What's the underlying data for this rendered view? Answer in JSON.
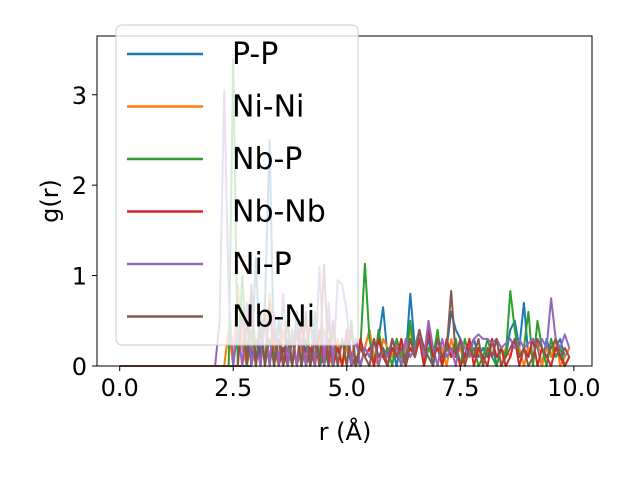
{
  "chart_data": {
    "type": "line",
    "title": "",
    "xlabel": "r (Å)",
    "ylabel": "g(r)",
    "xlim": [
      -0.5,
      10.4
    ],
    "ylim": [
      0,
      3.65
    ],
    "xticks": [
      {
        "value": 0.0,
        "label": "0.0"
      },
      {
        "value": 2.5,
        "label": "2.5"
      },
      {
        "value": 5.0,
        "label": "5.0"
      },
      {
        "value": 7.5,
        "label": "7.5"
      },
      {
        "value": 10.0,
        "label": "10.0"
      }
    ],
    "yticks": [
      {
        "value": 0,
        "label": "0"
      },
      {
        "value": 1,
        "label": "1"
      },
      {
        "value": 2,
        "label": "2"
      },
      {
        "value": 3,
        "label": "3"
      }
    ],
    "grid": false,
    "legend_position": "upper-left",
    "series": [
      {
        "name": "P-P",
        "color": "#1f77b4",
        "x": [
          0.0,
          2.9,
          3.0,
          3.1,
          3.2,
          3.3,
          3.4,
          3.5,
          3.6,
          3.7,
          3.8,
          3.9,
          4.0,
          4.1,
          4.2,
          4.3,
          4.4,
          4.5,
          4.6,
          4.7,
          4.8,
          4.9,
          5.0,
          5.1,
          5.2,
          5.3,
          5.4,
          5.5,
          5.6,
          5.7,
          5.8,
          5.9,
          6.0,
          6.1,
          6.2,
          6.3,
          6.4,
          6.5,
          6.6,
          6.7,
          6.8,
          6.9,
          7.0,
          7.1,
          7.2,
          7.3,
          7.4,
          7.5,
          7.6,
          7.7,
          7.8,
          7.9,
          8.0,
          8.1,
          8.2,
          8.3,
          8.4,
          8.5,
          8.6,
          8.7,
          8.8,
          8.9,
          9.0,
          9.1,
          9.2,
          9.3,
          9.4,
          9.5,
          9.6,
          9.7,
          9.8,
          9.9
        ],
        "y": [
          0,
          0,
          1.2,
          0.0,
          0.7,
          2.5,
          0.0,
          0.5,
          0.0,
          0.3,
          0.0,
          0.6,
          0.0,
          0.2,
          0.0,
          0.4,
          0.0,
          0.1,
          0.5,
          0.0,
          0.2,
          0.0,
          0.3,
          0.0,
          0.1,
          0.0,
          0.2,
          0.4,
          0.0,
          0.3,
          0.65,
          0.1,
          0.2,
          0.0,
          0.3,
          0.1,
          0.8,
          0.2,
          0.4,
          0.1,
          0.3,
          0.0,
          0.3,
          0.1,
          0.2,
          0.6,
          0.4,
          0.3,
          0.1,
          0.2,
          0.3,
          0.1,
          0.2,
          0.1,
          0.3,
          0.0,
          0.2,
          0.1,
          0.4,
          0.5,
          0.2,
          0.7,
          0.1,
          0.3,
          0.2,
          0.0,
          0.3,
          0.1,
          0.2,
          0.3,
          0.1,
          0.2
        ]
      },
      {
        "name": "Ni-Ni",
        "color": "#ff7f0e",
        "x": [
          0.0,
          2.3,
          2.4,
          2.5,
          2.6,
          2.7,
          2.8,
          2.9,
          3.0,
          3.1,
          3.2,
          3.3,
          3.4,
          3.5,
          3.6,
          3.7,
          3.8,
          3.9,
          4.0,
          4.1,
          4.2,
          4.3,
          4.4,
          4.5,
          4.6,
          4.7,
          4.8,
          4.9,
          5.0,
          5.1,
          5.2,
          5.3,
          5.4,
          5.5,
          5.6,
          5.7,
          5.8,
          5.9,
          6.0,
          6.1,
          6.2,
          6.3,
          6.4,
          6.5,
          6.6,
          6.7,
          6.8,
          6.9,
          7.0,
          7.1,
          7.2,
          7.3,
          7.4,
          7.5,
          7.6,
          7.7,
          7.8,
          7.9,
          8.0,
          8.1,
          8.2,
          8.3,
          8.4,
          8.5,
          8.6,
          8.7,
          8.8,
          8.9,
          9.0,
          9.1,
          9.2,
          9.3,
          9.4,
          9.5,
          9.6,
          9.7,
          9.8,
          9.9
        ],
        "y": [
          0,
          0,
          0.4,
          0.0,
          0.9,
          0.2,
          0.0,
          0.3,
          0.0,
          0.5,
          0.0,
          0.8,
          0.2,
          0.0,
          0.4,
          0.0,
          0.3,
          0.0,
          0.2,
          0.5,
          0.0,
          0.3,
          0.0,
          0.4,
          0.1,
          0.0,
          0.3,
          0.0,
          0.2,
          0.1,
          0.3,
          0.0,
          0.2,
          0.4,
          0.1,
          0.0,
          0.3,
          0.2,
          0.1,
          0.3,
          0.0,
          0.2,
          0.4,
          0.1,
          0.3,
          0.0,
          0.2,
          0.1,
          0.3,
          0.2,
          0.0,
          0.3,
          0.1,
          0.2,
          0.0,
          0.3,
          0.1,
          0.2,
          0.0,
          0.2,
          0.1,
          0.3,
          0.0,
          0.2,
          0.1,
          0.3,
          0.2,
          0.0,
          0.2,
          0.1,
          0.3,
          0.0,
          0.2,
          0.1,
          0.3,
          0.0,
          0.1,
          0.2
        ]
      },
      {
        "name": "Nb-P",
        "color": "#2ca02c",
        "x": [
          0.0,
          2.4,
          2.5,
          2.6,
          2.7,
          2.8,
          2.9,
          3.0,
          3.1,
          3.2,
          3.3,
          3.4,
          3.5,
          3.6,
          3.7,
          3.8,
          3.9,
          4.0,
          4.1,
          4.2,
          4.3,
          4.4,
          4.5,
          4.6,
          4.7,
          4.8,
          4.9,
          5.0,
          5.1,
          5.2,
          5.3,
          5.4,
          5.5,
          5.6,
          5.7,
          5.8,
          5.9,
          6.0,
          6.1,
          6.2,
          6.3,
          6.4,
          6.5,
          6.6,
          6.7,
          6.8,
          6.9,
          7.0,
          7.1,
          7.2,
          7.3,
          7.4,
          7.5,
          7.6,
          7.7,
          7.8,
          7.9,
          8.0,
          8.1,
          8.2,
          8.3,
          8.4,
          8.5,
          8.6,
          8.7,
          8.8,
          8.9,
          9.0,
          9.1,
          9.2,
          9.3,
          9.4,
          9.5,
          9.6,
          9.7,
          9.8,
          9.9
        ],
        "y": [
          0,
          0,
          3.4,
          0.0,
          1.0,
          0.0,
          0.4,
          0.0,
          0.6,
          0.0,
          0.3,
          0.0,
          0.5,
          0.0,
          0.2,
          0.0,
          0.4,
          0.0,
          0.3,
          0.0,
          0.6,
          0.0,
          0.2,
          0.0,
          0.4,
          0.0,
          0.3,
          0.0,
          0.5,
          0.0,
          0.2,
          1.13,
          0.3,
          0.0,
          0.4,
          0.1,
          0.2,
          0.0,
          0.3,
          0.1,
          0.0,
          0.5,
          0.1,
          0.3,
          0.0,
          0.2,
          0.1,
          0.4,
          0.0,
          0.2,
          0.1,
          0.3,
          0.0,
          0.3,
          0.1,
          0.2,
          0.0,
          0.1,
          0.3,
          0.1,
          0.0,
          0.2,
          0.1,
          0.83,
          0.4,
          0.1,
          0.2,
          0.6,
          0.0,
          0.5,
          0.2,
          0.0,
          0.3,
          0.1,
          0.2,
          0.0,
          0.1
        ]
      },
      {
        "name": "Nb-Nb",
        "color": "#d62728",
        "x": [
          0.0,
          2.7,
          2.8,
          2.9,
          3.0,
          3.1,
          3.2,
          3.3,
          3.4,
          3.5,
          3.6,
          3.7,
          3.8,
          3.9,
          4.0,
          4.1,
          4.2,
          4.3,
          4.4,
          4.5,
          4.6,
          4.7,
          4.8,
          4.9,
          5.0,
          5.1,
          5.2,
          5.3,
          5.4,
          5.5,
          5.6,
          5.7,
          5.8,
          5.9,
          6.0,
          6.1,
          6.2,
          6.3,
          6.4,
          6.5,
          6.6,
          6.7,
          6.8,
          6.9,
          7.0,
          7.1,
          7.2,
          7.3,
          7.4,
          7.5,
          7.6,
          7.7,
          7.8,
          7.9,
          8.0,
          8.1,
          8.2,
          8.3,
          8.4,
          8.5,
          8.6,
          8.7,
          8.8,
          8.9,
          9.0,
          9.1,
          9.2,
          9.3,
          9.4,
          9.5,
          9.6,
          9.7,
          9.8,
          9.9
        ],
        "y": [
          0,
          0,
          0.5,
          0.0,
          0.3,
          0.0,
          0.6,
          0.0,
          0.4,
          0.0,
          0.2,
          0.0,
          0.3,
          0.0,
          0.5,
          0.0,
          0.2,
          0.0,
          0.4,
          0.0,
          0.3,
          0.0,
          0.2,
          0.0,
          0.4,
          0.1,
          0.0,
          0.3,
          0.1,
          0.2,
          0.0,
          0.3,
          0.1,
          0.0,
          0.2,
          0.1,
          0.3,
          0.0,
          0.2,
          0.1,
          0.3,
          0.0,
          0.4,
          0.1,
          0.2,
          0.0,
          0.3,
          0.1,
          0.2,
          0.0,
          0.1,
          0.3,
          0.0,
          0.2,
          0.1,
          0.0,
          0.3,
          0.1,
          0.2,
          0.0,
          0.1,
          0.3,
          0.0,
          0.2,
          0.1,
          0.3,
          0.0,
          0.2,
          0.1,
          0.0,
          0.2,
          0.1,
          0.0,
          0.1
        ]
      },
      {
        "name": "Ni-P",
        "color": "#9467bd",
        "x": [
          0.0,
          2.1,
          2.2,
          2.3,
          2.4,
          2.5,
          2.6,
          2.7,
          2.8,
          2.9,
          3.0,
          3.1,
          3.2,
          3.3,
          3.4,
          3.5,
          3.6,
          3.7,
          3.8,
          3.9,
          4.0,
          4.1,
          4.2,
          4.3,
          4.4,
          4.5,
          4.6,
          4.7,
          4.8,
          4.9,
          5.0,
          5.1,
          5.2,
          5.3,
          5.4,
          5.5,
          5.6,
          5.7,
          5.8,
          5.9,
          6.0,
          6.1,
          6.2,
          6.3,
          6.4,
          6.5,
          6.6,
          6.7,
          6.8,
          6.9,
          7.0,
          7.1,
          7.2,
          7.3,
          7.4,
          7.5,
          7.6,
          7.7,
          7.8,
          7.9,
          8.0,
          8.1,
          8.2,
          8.3,
          8.4,
          8.5,
          8.6,
          8.7,
          8.8,
          8.9,
          9.0,
          9.1,
          9.2,
          9.3,
          9.4,
          9.5,
          9.6,
          9.7,
          9.8,
          9.9
        ],
        "y": [
          0,
          0,
          0.5,
          3.05,
          0.8,
          0.0,
          0.4,
          0.0,
          0.7,
          0.0,
          0.3,
          0.0,
          0.5,
          0.0,
          0.6,
          0.0,
          0.8,
          0.0,
          0.4,
          0.0,
          0.3,
          0.0,
          0.5,
          0.0,
          1.1,
          0.0,
          0.7,
          0.0,
          0.95,
          0.9,
          0.6,
          0.0,
          0.3,
          0.0,
          0.2,
          0.1,
          0.3,
          0.0,
          0.2,
          0.1,
          0.3,
          0.2,
          0.0,
          0.3,
          0.1,
          0.2,
          0.4,
          0.1,
          0.5,
          0.2,
          0.0,
          0.3,
          0.1,
          0.2,
          0.0,
          0.3,
          0.2,
          0.1,
          0.3,
          0.35,
          0.3,
          0.3,
          0.25,
          0.3,
          0.2,
          0.25,
          0.3,
          0.2,
          0.3,
          0.2,
          0.25,
          0.3,
          0.2,
          0.3,
          0.2,
          0.75,
          0.3,
          0.2,
          0.35,
          0.2
        ]
      },
      {
        "name": "Nb-Ni",
        "color": "#8c564b",
        "x": [
          0.0,
          2.6,
          2.7,
          2.8,
          2.9,
          3.0,
          3.1,
          3.2,
          3.3,
          3.4,
          3.5,
          3.6,
          3.7,
          3.8,
          3.9,
          4.0,
          4.1,
          4.2,
          4.3,
          4.4,
          4.5,
          4.6,
          4.7,
          4.8,
          4.9,
          5.0,
          5.1,
          5.2,
          5.3,
          5.4,
          5.5,
          5.6,
          5.7,
          5.8,
          5.9,
          6.0,
          6.1,
          6.2,
          6.3,
          6.4,
          6.5,
          6.6,
          6.7,
          6.8,
          6.9,
          7.0,
          7.1,
          7.2,
          7.3,
          7.4,
          7.5,
          7.6,
          7.7,
          7.8,
          7.9,
          8.0,
          8.1,
          8.2,
          8.3,
          8.4,
          8.5,
          8.6,
          8.7,
          8.8,
          8.9,
          9.0,
          9.1,
          9.2,
          9.3,
          9.4,
          9.5,
          9.6,
          9.7,
          9.8,
          9.9
        ],
        "y": [
          0,
          0,
          0.6,
          0.0,
          0.9,
          0.0,
          0.4,
          0.0,
          0.7,
          0.0,
          0.3,
          0.0,
          0.5,
          0.0,
          0.4,
          0.0,
          0.6,
          0.0,
          0.3,
          0.0,
          1.12,
          0.0,
          0.5,
          0.0,
          0.3,
          0.0,
          0.4,
          0.0,
          0.2,
          0.1,
          0.0,
          0.3,
          0.1,
          0.2,
          0.0,
          0.3,
          0.1,
          0.2,
          0.0,
          0.3,
          0.1,
          0.4,
          0.2,
          0.1,
          0.0,
          0.3,
          0.1,
          0.2,
          0.83,
          0.1,
          0.3,
          0.0,
          0.2,
          0.1,
          0.3,
          0.0,
          0.2,
          0.1,
          0.3,
          0.0,
          0.1,
          0.2,
          0.3,
          0.1,
          0.2,
          0.0,
          0.1,
          0.3,
          0.2,
          0.1,
          0.2,
          0.3,
          0.1,
          0.2,
          0.1
        ]
      }
    ]
  }
}
